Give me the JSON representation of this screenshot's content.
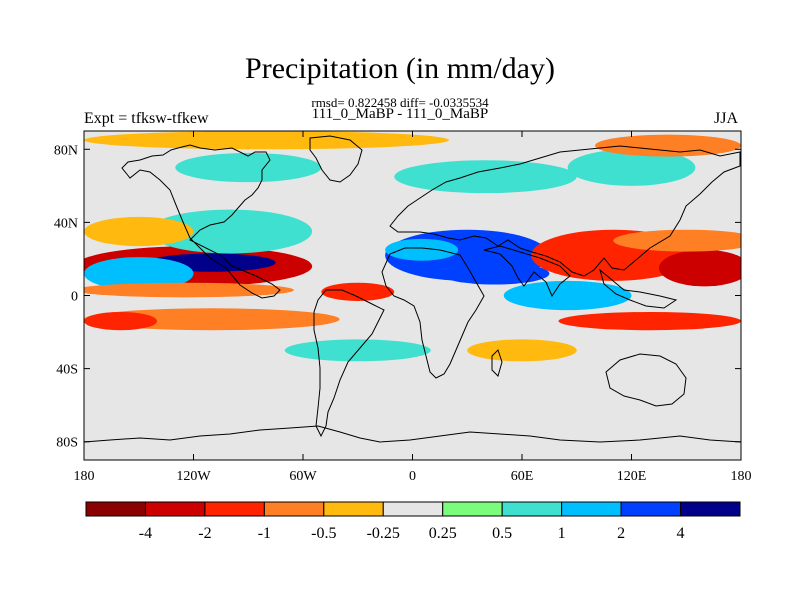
{
  "title": "Precipitation (in mm/day)",
  "stats_line": "rmsd= 0.822458 diff= -0.0335534",
  "subtitle": "111_0_MaBP - 111_0_MaBP",
  "left_label": "Expt = tfksw-tfkew",
  "right_label": "JJA",
  "map": {
    "x_ticks": [
      {
        "lon": -180,
        "label": "180"
      },
      {
        "lon": -120,
        "label": "120W"
      },
      {
        "lon": -60,
        "label": "60W"
      },
      {
        "lon": 0,
        "label": "0"
      },
      {
        "lon": 60,
        "label": "60E"
      },
      {
        "lon": 120,
        "label": "120E"
      },
      {
        "lon": 180,
        "label": "180"
      }
    ],
    "y_ticks": [
      {
        "lat": 80,
        "label": "80N"
      },
      {
        "lat": 40,
        "label": "40N"
      },
      {
        "lat": 0,
        "label": "0"
      },
      {
        "lat": -40,
        "label": "40S"
      },
      {
        "lat": -80,
        "label": "80S"
      }
    ],
    "lat_range": [
      -90,
      90
    ],
    "lon_range": [
      -180,
      180
    ],
    "background_color": "#e6e6e6",
    "anomalies": [
      {
        "lon": -120,
        "lat": 16,
        "rlon": 65,
        "rlat": 11,
        "level": -4
      },
      {
        "lon": -110,
        "lat": 18,
        "rlon": 35,
        "rlat": 5,
        "level": 4
      },
      {
        "lon": -150,
        "lat": 12,
        "rlon": 30,
        "rlat": 9,
        "level": 1
      },
      {
        "lon": -125,
        "lat": 3,
        "rlon": 60,
        "rlat": 4,
        "level": -1
      },
      {
        "lon": -110,
        "lat": -13,
        "rlon": 70,
        "rlat": 6,
        "level": -1
      },
      {
        "lon": -160,
        "lat": -14,
        "rlon": 20,
        "rlat": 5,
        "level": -2
      },
      {
        "lon": -30,
        "lat": 2,
        "rlon": 20,
        "rlat": 5,
        "level": -2
      },
      {
        "lon": -100,
        "lat": 35,
        "rlon": 45,
        "rlat": 12,
        "level": 0.5
      },
      {
        "lon": -90,
        "lat": 70,
        "rlon": 40,
        "rlat": 8,
        "level": 0.5
      },
      {
        "lon": 40,
        "lat": 65,
        "rlon": 50,
        "rlat": 9,
        "level": 0.5
      },
      {
        "lon": 30,
        "lat": 22,
        "rlon": 45,
        "rlat": 14,
        "level": 2
      },
      {
        "lon": 45,
        "lat": 12,
        "rlon": 30,
        "rlat": 6,
        "level": 2
      },
      {
        "lon": 5,
        "lat": 25,
        "rlon": 20,
        "rlat": 6,
        "level": 1
      },
      {
        "lon": 85,
        "lat": 0,
        "rlon": 35,
        "rlat": 8,
        "level": 1
      },
      {
        "lon": 120,
        "lat": 70,
        "rlon": 35,
        "rlat": 10,
        "level": 0.5
      },
      {
        "lon": 110,
        "lat": 22,
        "rlon": 45,
        "rlat": 14,
        "level": -2
      },
      {
        "lon": 160,
        "lat": 15,
        "rlon": 25,
        "rlat": 10,
        "level": -4
      },
      {
        "lon": 150,
        "lat": 30,
        "rlon": 40,
        "rlat": 6,
        "level": -1
      },
      {
        "lon": 130,
        "lat": -14,
        "rlon": 50,
        "rlat": 5,
        "level": -2
      },
      {
        "lon": -80,
        "lat": 85,
        "rlon": 100,
        "rlat": 5,
        "level": -0.5
      },
      {
        "lon": 140,
        "lat": 82,
        "rlon": 40,
        "rlat": 6,
        "level": -1
      },
      {
        "lon": -150,
        "lat": 35,
        "rlon": 30,
        "rlat": 8,
        "level": -0.5
      },
      {
        "lon": -30,
        "lat": -30,
        "rlon": 40,
        "rlat": 6,
        "level": 0.5
      },
      {
        "lon": 60,
        "lat": -30,
        "rlon": 30,
        "rlat": 6,
        "level": -0.5
      }
    ]
  },
  "colorbar": {
    "colors": [
      "#8b0000",
      "#cd0000",
      "#ff2400",
      "#ff7f24",
      "#ffb90f",
      "#e6e6e6",
      "#7cfc7c",
      "#40e0d0",
      "#00bfff",
      "#0041ff",
      "#00008b"
    ],
    "labels": [
      "-4",
      "-2",
      "-1",
      "-0.5",
      "-0.25",
      "0.25",
      "0.5",
      "1",
      "2",
      "4"
    ]
  }
}
